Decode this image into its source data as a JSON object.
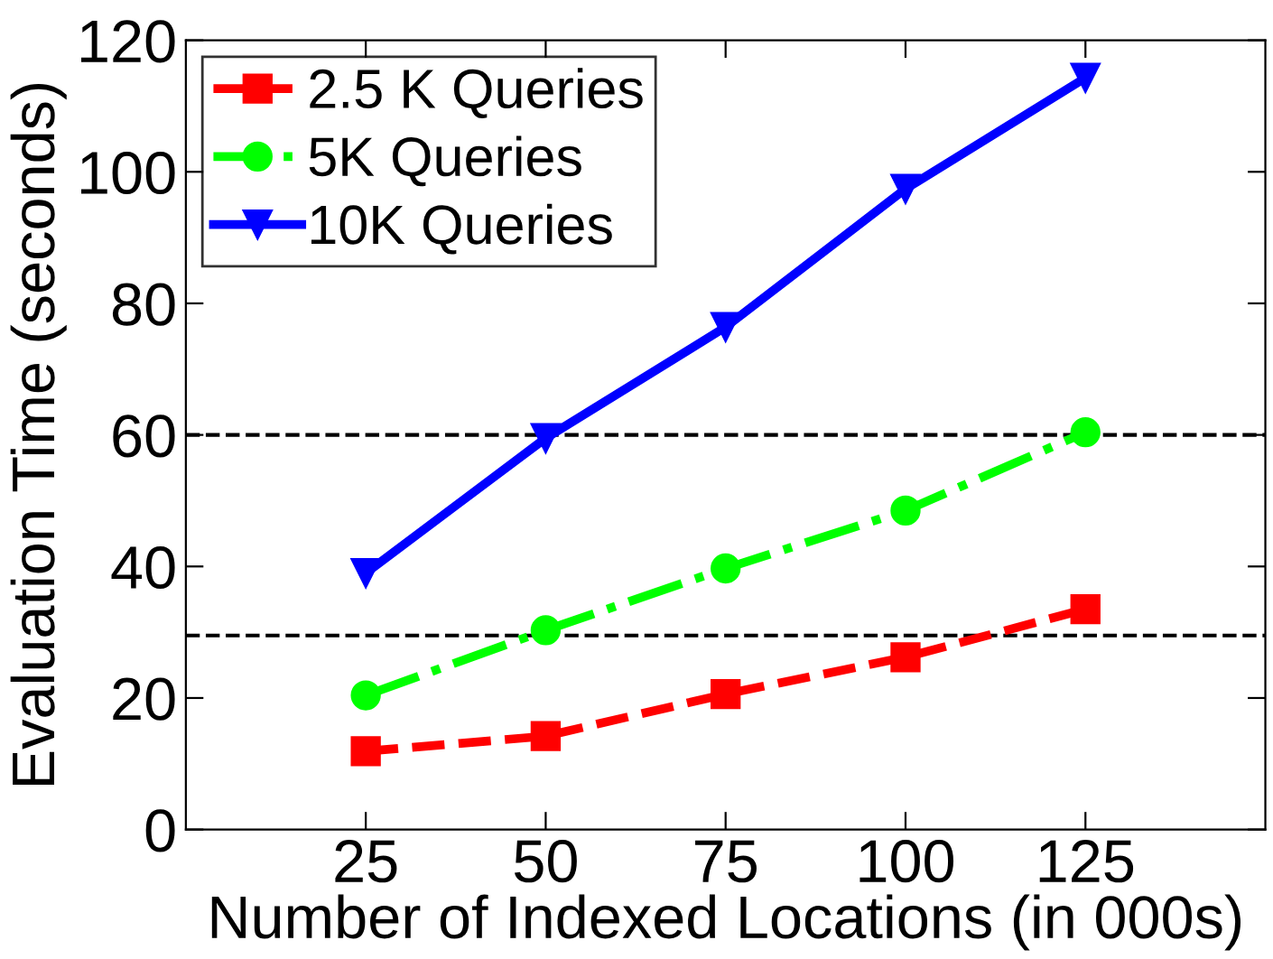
{
  "chart_data": {
    "type": "line",
    "xlabel": "Number of Indexed Locations (in 000s)",
    "ylabel": "Evaluation Time (seconds)",
    "x": [
      25,
      50,
      75,
      100,
      125
    ],
    "series": [
      {
        "name": "2.5 K Queries",
        "color": "#ff0000",
        "marker": "square",
        "line_style": "dashed",
        "values": [
          11.9,
          14.2,
          20.6,
          26.2,
          33.5
        ]
      },
      {
        "name": "5K Queries",
        "color": "#00ff00",
        "marker": "circle",
        "line_style": "dashdot",
        "values": [
          20.4,
          30.3,
          39.7,
          48.5,
          60.4
        ]
      },
      {
        "name": "10K Queries",
        "color": "#0000ff",
        "marker": "triangle",
        "line_style": "solid",
        "values": [
          39,
          59.5,
          76.4,
          97.4,
          114.3
        ]
      }
    ],
    "xlim": [
      0,
      150
    ],
    "xticks": [
      25,
      50,
      75,
      100,
      125
    ],
    "ylim": [
      0,
      120
    ],
    "yticks": [
      0,
      20,
      40,
      60,
      80,
      100,
      120
    ],
    "ref_lines": [
      {
        "axis": "y",
        "value": 60,
        "color": "#000000",
        "line_style": "dashed"
      },
      {
        "axis": "y",
        "value": 29.5,
        "color": "#000000",
        "line_style": "dashed"
      }
    ],
    "grid": false,
    "legend": "top left"
  }
}
